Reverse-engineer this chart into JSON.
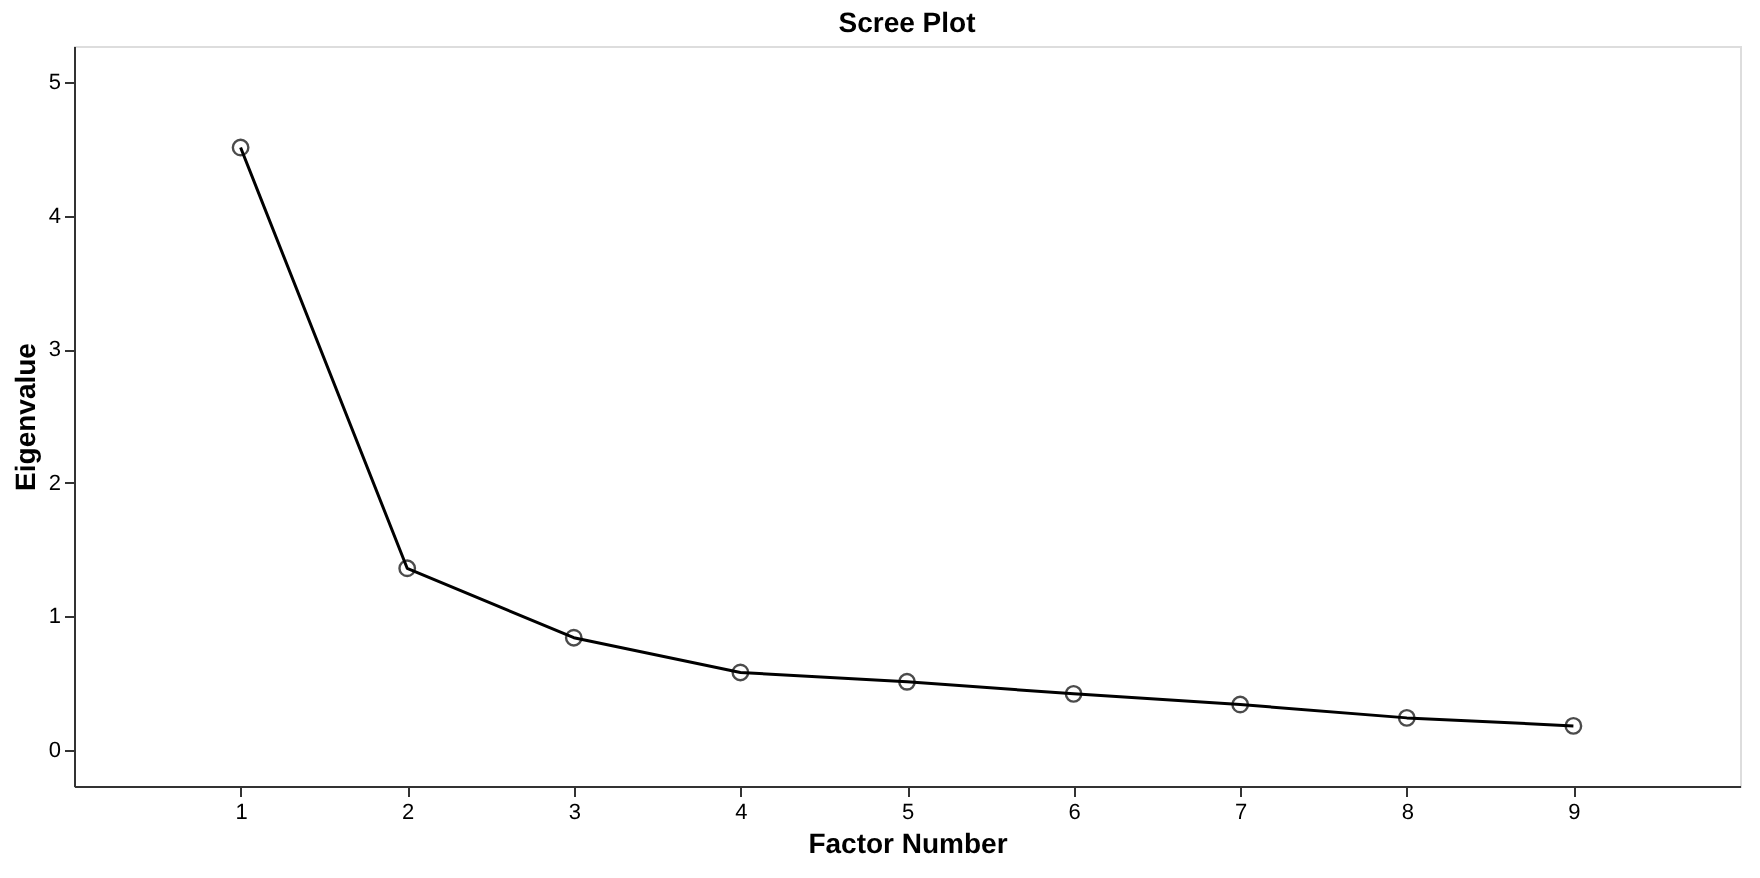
{
  "chart_data": {
    "type": "line",
    "title": "Scree Plot",
    "xlabel": "Factor Number",
    "ylabel": "Eigenvalue",
    "x": [
      1,
      2,
      3,
      4,
      5,
      6,
      7,
      8,
      9
    ],
    "series": [
      {
        "color": "#000000",
        "values": [
          4.51,
          1.36,
          0.84,
          0.58,
          0.51,
          0.42,
          0.34,
          0.24,
          0.18
        ]
      }
    ],
    "xlim": [
      0,
      10
    ],
    "xticks": [
      1,
      2,
      3,
      4,
      5,
      6,
      7,
      8,
      9
    ],
    "ylim": [
      -0.27,
      5.27
    ],
    "yticks": [
      0,
      1,
      2,
      3,
      4,
      5
    ],
    "grid": false,
    "marker": "circle",
    "line_style": "solid"
  }
}
